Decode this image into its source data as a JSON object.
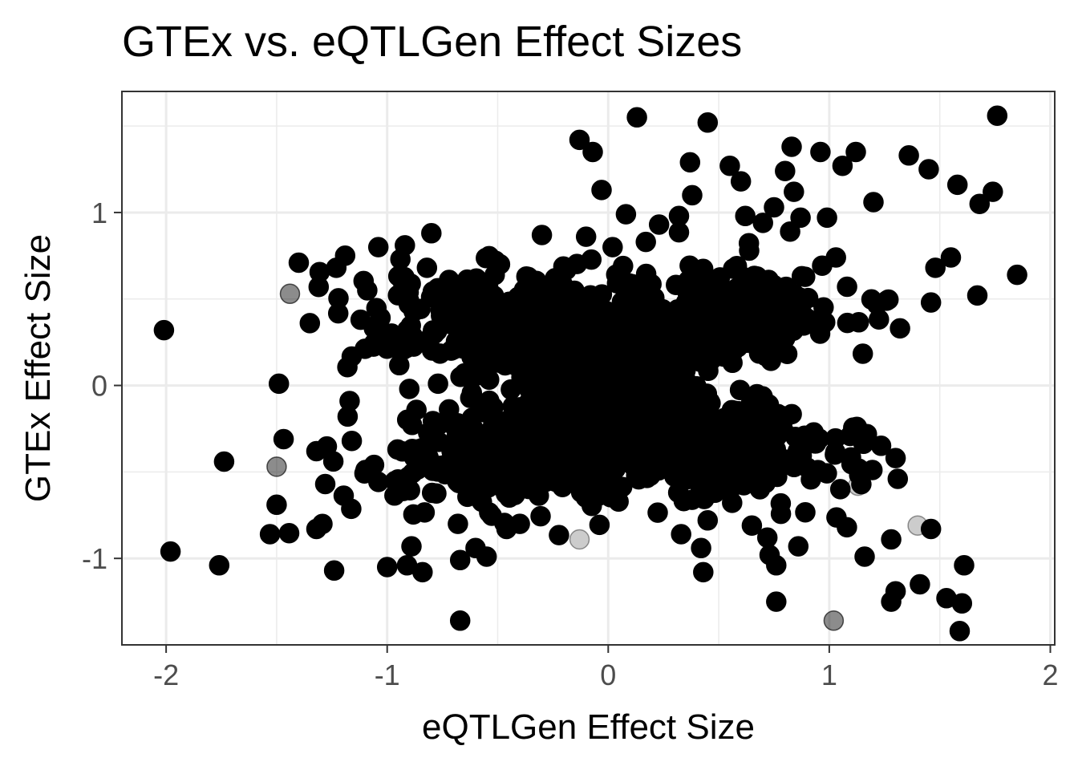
{
  "chart_data": {
    "type": "scatter",
    "title": "GTEx vs. eQTLGen Effect Sizes",
    "xlabel": "eQTLGen Effect Size",
    "ylabel": "GTEx Effect Size",
    "xlim": [
      -2.2,
      2.02
    ],
    "ylim": [
      -1.5,
      1.7
    ],
    "x_ticks": [
      -2,
      -1,
      0,
      1,
      2
    ],
    "x_tick_labels": [
      "-2",
      "-1",
      "0",
      "1",
      "2"
    ],
    "y_ticks": [
      -1,
      0,
      1
    ],
    "y_tick_labels": [
      "-1",
      "0",
      "1"
    ],
    "grid": true,
    "point_color": "#000000",
    "points": [
      {
        "x": -2.01,
        "y": 0.32,
        "a": 1
      },
      {
        "x": -1.98,
        "y": -0.96,
        "a": 1
      },
      {
        "x": -1.76,
        "y": -1.04,
        "a": 1
      },
      {
        "x": -1.53,
        "y": -0.86,
        "a": 1
      },
      {
        "x": -1.5,
        "y": -0.47,
        "a": 0.45
      },
      {
        "x": -1.5,
        "y": -0.69,
        "a": 1
      },
      {
        "x": -1.49,
        "y": 0.01,
        "a": 1
      },
      {
        "x": -1.44,
        "y": 0.53,
        "a": 0.45
      },
      {
        "x": -1.4,
        "y": 0.71,
        "a": 1
      },
      {
        "x": -1.35,
        "y": 0.36,
        "a": 1
      },
      {
        "x": -1.32,
        "y": -0.83,
        "a": 1
      },
      {
        "x": -1.32,
        "y": -0.38,
        "a": 1
      },
      {
        "x": -1.31,
        "y": 0.57,
        "a": 1
      },
      {
        "x": -1.28,
        "y": -0.57,
        "a": 1
      },
      {
        "x": -1.24,
        "y": -1.07,
        "a": 1
      },
      {
        "x": -1.23,
        "y": 0.68,
        "a": 1
      },
      {
        "x": -1.19,
        "y": 0.75,
        "a": 1
      },
      {
        "x": -1.17,
        "y": -0.09,
        "a": 1
      },
      {
        "x": -1.12,
        "y": 0.38,
        "a": 1
      },
      {
        "x": -1.09,
        "y": 0.55,
        "a": 1
      },
      {
        "x": -1.06,
        "y": 0.33,
        "a": 1
      },
      {
        "x": -1.04,
        "y": 0.8,
        "a": 1
      },
      {
        "x": -1.0,
        "y": -1.05,
        "a": 1
      },
      {
        "x": -0.98,
        "y": 0.3,
        "a": 1
      },
      {
        "x": -0.95,
        "y": 0.21,
        "a": 1
      },
      {
        "x": -0.94,
        "y": 0.73,
        "a": 1
      },
      {
        "x": -0.92,
        "y": 0.81,
        "a": 1
      },
      {
        "x": -0.91,
        "y": -1.04,
        "a": 1
      },
      {
        "x": -0.9,
        "y": -0.02,
        "a": 1
      },
      {
        "x": -0.89,
        "y": -0.93,
        "a": 1
      },
      {
        "x": -0.84,
        "y": -1.08,
        "a": 1
      },
      {
        "x": -0.82,
        "y": 0.68,
        "a": 1
      },
      {
        "x": -0.8,
        "y": 0.88,
        "a": 1
      },
      {
        "x": -0.77,
        "y": 0.01,
        "a": 1
      },
      {
        "x": -0.72,
        "y": 0.61,
        "a": 1
      },
      {
        "x": -0.68,
        "y": -0.8,
        "a": 1
      },
      {
        "x": -0.67,
        "y": -1.01,
        "a": 1
      },
      {
        "x": -0.67,
        "y": -1.36,
        "a": 1
      },
      {
        "x": -0.65,
        "y": 0.07,
        "a": 1
      },
      {
        "x": -0.6,
        "y": -0.94,
        "a": 1
      },
      {
        "x": -0.55,
        "y": -0.99,
        "a": 1
      },
      {
        "x": -0.51,
        "y": 0.72,
        "a": 1
      },
      {
        "x": -0.46,
        "y": -0.83,
        "a": 1
      },
      {
        "x": -0.4,
        "y": -0.8,
        "a": 1
      },
      {
        "x": -0.37,
        "y": 0.63,
        "a": 1
      },
      {
        "x": -0.3,
        "y": 0.87,
        "a": 1
      },
      {
        "x": -0.13,
        "y": -0.89,
        "a": 0.2
      },
      {
        "x": -0.13,
        "y": 1.42,
        "a": 1
      },
      {
        "x": -0.1,
        "y": 0.86,
        "a": 1
      },
      {
        "x": -0.08,
        "y": -0.67,
        "a": 1
      },
      {
        "x": -0.07,
        "y": 1.35,
        "a": 1
      },
      {
        "x": -0.03,
        "y": 1.13,
        "a": 1
      },
      {
        "x": 0.02,
        "y": 0.8,
        "a": 1
      },
      {
        "x": 0.08,
        "y": 0.99,
        "a": 1
      },
      {
        "x": 0.13,
        "y": 1.55,
        "a": 1
      },
      {
        "x": 0.17,
        "y": 0.83,
        "a": 1
      },
      {
        "x": 0.23,
        "y": 0.93,
        "a": 1
      },
      {
        "x": 0.32,
        "y": 0.98,
        "a": 1
      },
      {
        "x": 0.33,
        "y": -0.86,
        "a": 1
      },
      {
        "x": 0.37,
        "y": 1.29,
        "a": 1
      },
      {
        "x": 0.38,
        "y": 1.1,
        "a": 1
      },
      {
        "x": 0.42,
        "y": -0.94,
        "a": 1
      },
      {
        "x": 0.43,
        "y": -1.08,
        "a": 1
      },
      {
        "x": 0.45,
        "y": -0.78,
        "a": 1
      },
      {
        "x": 0.45,
        "y": 1.52,
        "a": 1
      },
      {
        "x": 0.55,
        "y": 1.27,
        "a": 1
      },
      {
        "x": 0.6,
        "y": 1.18,
        "a": 1
      },
      {
        "x": 0.62,
        "y": 0.98,
        "a": 1
      },
      {
        "x": 0.65,
        "y": -0.81,
        "a": 1
      },
      {
        "x": 0.7,
        "y": 0.94,
        "a": 1
      },
      {
        "x": 0.72,
        "y": -0.88,
        "a": 1
      },
      {
        "x": 0.73,
        "y": -0.98,
        "a": 1
      },
      {
        "x": 0.75,
        "y": 1.03,
        "a": 1
      },
      {
        "x": 0.76,
        "y": -1.25,
        "a": 1
      },
      {
        "x": 0.76,
        "y": -1.04,
        "a": 1
      },
      {
        "x": 0.8,
        "y": 1.24,
        "a": 1
      },
      {
        "x": 0.83,
        "y": 1.38,
        "a": 1
      },
      {
        "x": 0.84,
        "y": 1.12,
        "a": 1
      },
      {
        "x": 0.86,
        "y": -0.93,
        "a": 1
      },
      {
        "x": 0.87,
        "y": 0.97,
        "a": 1
      },
      {
        "x": 0.96,
        "y": 1.35,
        "a": 1
      },
      {
        "x": 0.99,
        "y": 0.97,
        "a": 1
      },
      {
        "x": 1.02,
        "y": -1.36,
        "a": 0.45
      },
      {
        "x": 1.03,
        "y": 0.74,
        "a": 1
      },
      {
        "x": 1.05,
        "y": -0.6,
        "a": 1
      },
      {
        "x": 1.06,
        "y": 1.27,
        "a": 1
      },
      {
        "x": 1.08,
        "y": -0.82,
        "a": 1
      },
      {
        "x": 1.12,
        "y": 1.35,
        "a": 1
      },
      {
        "x": 1.13,
        "y": -0.58,
        "a": 0.2
      },
      {
        "x": 1.16,
        "y": -0.99,
        "a": 1
      },
      {
        "x": 1.2,
        "y": 1.06,
        "a": 1
      },
      {
        "x": 1.26,
        "y": 0.49,
        "a": 1
      },
      {
        "x": 1.28,
        "y": -0.89,
        "a": 1
      },
      {
        "x": 1.28,
        "y": -1.25,
        "a": 1
      },
      {
        "x": 1.3,
        "y": -1.19,
        "a": 1
      },
      {
        "x": 1.3,
        "y": -0.42,
        "a": 1
      },
      {
        "x": 1.31,
        "y": -0.54,
        "a": 1
      },
      {
        "x": 1.32,
        "y": 0.33,
        "a": 1
      },
      {
        "x": 1.36,
        "y": 1.33,
        "a": 1
      },
      {
        "x": 1.4,
        "y": -0.81,
        "a": 0.2
      },
      {
        "x": 1.41,
        "y": -1.15,
        "a": 1
      },
      {
        "x": 1.45,
        "y": 1.25,
        "a": 1
      },
      {
        "x": 1.46,
        "y": -0.83,
        "a": 1
      },
      {
        "x": 1.46,
        "y": 0.48,
        "a": 1
      },
      {
        "x": 1.48,
        "y": 0.68,
        "a": 1
      },
      {
        "x": 1.53,
        "y": -1.23,
        "a": 1
      },
      {
        "x": 1.55,
        "y": 0.74,
        "a": 1
      },
      {
        "x": 1.58,
        "y": 1.16,
        "a": 1
      },
      {
        "x": 1.59,
        "y": -1.42,
        "a": 1
      },
      {
        "x": 1.6,
        "y": -1.26,
        "a": 1
      },
      {
        "x": 1.61,
        "y": -1.04,
        "a": 1
      },
      {
        "x": 1.67,
        "y": 0.52,
        "a": 1
      },
      {
        "x": 1.68,
        "y": 1.05,
        "a": 1
      },
      {
        "x": 1.74,
        "y": 1.12,
        "a": 1
      },
      {
        "x": 1.76,
        "y": 1.56,
        "a": 1
      },
      {
        "x": 1.85,
        "y": 0.64,
        "a": 1
      }
    ]
  }
}
